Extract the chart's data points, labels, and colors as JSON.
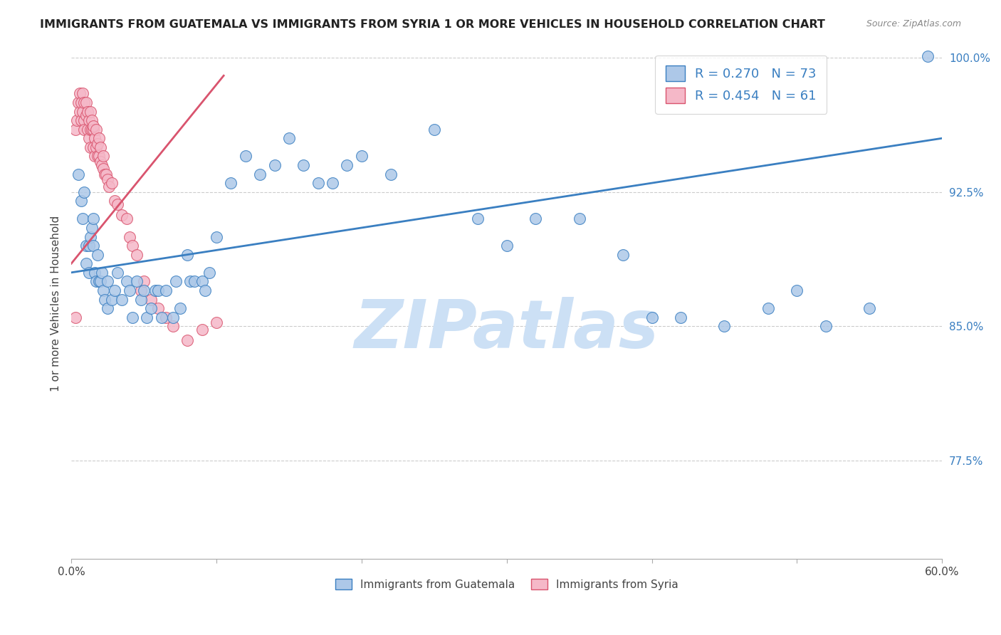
{
  "title": "IMMIGRANTS FROM GUATEMALA VS IMMIGRANTS FROM SYRIA 1 OR MORE VEHICLES IN HOUSEHOLD CORRELATION CHART",
  "source": "Source: ZipAtlas.com",
  "ylabel": "1 or more Vehicles in Household",
  "xlim": [
    0.0,
    0.6
  ],
  "ylim": [
    0.72,
    1.005
  ],
  "ytick_positions": [
    0.775,
    0.85,
    0.925,
    1.0
  ],
  "ytick_labels": [
    "77.5%",
    "85.0%",
    "92.5%",
    "100.0%"
  ],
  "r_guatemala": 0.27,
  "n_guatemala": 73,
  "r_syria": 0.454,
  "n_syria": 61,
  "color_guatemala": "#adc8e8",
  "color_syria": "#f5b8c8",
  "line_color_guatemala": "#3a7fc1",
  "line_color_syria": "#d9546e",
  "watermark_color": "#cce0f5",
  "guatemala_x": [
    0.005,
    0.007,
    0.008,
    0.009,
    0.01,
    0.01,
    0.012,
    0.012,
    0.013,
    0.014,
    0.015,
    0.015,
    0.016,
    0.017,
    0.018,
    0.019,
    0.02,
    0.021,
    0.022,
    0.023,
    0.025,
    0.025,
    0.028,
    0.03,
    0.032,
    0.035,
    0.038,
    0.04,
    0.042,
    0.045,
    0.048,
    0.05,
    0.052,
    0.055,
    0.058,
    0.06,
    0.062,
    0.065,
    0.07,
    0.072,
    0.075,
    0.08,
    0.082,
    0.085,
    0.09,
    0.092,
    0.095,
    0.1,
    0.11,
    0.12,
    0.13,
    0.14,
    0.15,
    0.16,
    0.17,
    0.18,
    0.19,
    0.2,
    0.22,
    0.25,
    0.28,
    0.3,
    0.32,
    0.35,
    0.38,
    0.4,
    0.42,
    0.45,
    0.48,
    0.5,
    0.52,
    0.55,
    0.59
  ],
  "guatemala_y": [
    0.935,
    0.92,
    0.91,
    0.925,
    0.895,
    0.885,
    0.895,
    0.88,
    0.9,
    0.905,
    0.91,
    0.895,
    0.88,
    0.875,
    0.89,
    0.875,
    0.875,
    0.88,
    0.87,
    0.865,
    0.875,
    0.86,
    0.865,
    0.87,
    0.88,
    0.865,
    0.875,
    0.87,
    0.855,
    0.875,
    0.865,
    0.87,
    0.855,
    0.86,
    0.87,
    0.87,
    0.855,
    0.87,
    0.855,
    0.875,
    0.86,
    0.89,
    0.875,
    0.875,
    0.875,
    0.87,
    0.88,
    0.9,
    0.93,
    0.945,
    0.935,
    0.94,
    0.955,
    0.94,
    0.93,
    0.93,
    0.94,
    0.945,
    0.935,
    0.96,
    0.91,
    0.895,
    0.91,
    0.91,
    0.89,
    0.855,
    0.855,
    0.85,
    0.86,
    0.87,
    0.85,
    0.86,
    1.001
  ],
  "syria_x": [
    0.003,
    0.004,
    0.005,
    0.006,
    0.006,
    0.007,
    0.007,
    0.008,
    0.008,
    0.009,
    0.009,
    0.009,
    0.01,
    0.01,
    0.011,
    0.011,
    0.012,
    0.012,
    0.013,
    0.013,
    0.013,
    0.014,
    0.014,
    0.015,
    0.015,
    0.015,
    0.016,
    0.016,
    0.017,
    0.017,
    0.018,
    0.018,
    0.019,
    0.019,
    0.02,
    0.02,
    0.021,
    0.022,
    0.022,
    0.023,
    0.024,
    0.025,
    0.026,
    0.028,
    0.03,
    0.032,
    0.035,
    0.038,
    0.04,
    0.042,
    0.045,
    0.048,
    0.05,
    0.055,
    0.06,
    0.065,
    0.07,
    0.08,
    0.09,
    0.1,
    0.003
  ],
  "syria_y": [
    0.96,
    0.965,
    0.975,
    0.98,
    0.97,
    0.975,
    0.965,
    0.98,
    0.97,
    0.965,
    0.975,
    0.96,
    0.968,
    0.975,
    0.96,
    0.97,
    0.965,
    0.955,
    0.96,
    0.97,
    0.95,
    0.96,
    0.965,
    0.96,
    0.95,
    0.962,
    0.945,
    0.955,
    0.95,
    0.96,
    0.945,
    0.952,
    0.955,
    0.945,
    0.942,
    0.95,
    0.94,
    0.938,
    0.945,
    0.935,
    0.935,
    0.932,
    0.928,
    0.93,
    0.92,
    0.918,
    0.912,
    0.91,
    0.9,
    0.895,
    0.89,
    0.87,
    0.875,
    0.865,
    0.86,
    0.855,
    0.85,
    0.842,
    0.848,
    0.852,
    0.855
  ],
  "blue_trend_x": [
    0.0,
    0.6
  ],
  "blue_trend_y": [
    0.88,
    0.955
  ],
  "pink_trend_x": [
    0.0,
    0.105
  ],
  "pink_trend_y": [
    0.885,
    0.99
  ]
}
